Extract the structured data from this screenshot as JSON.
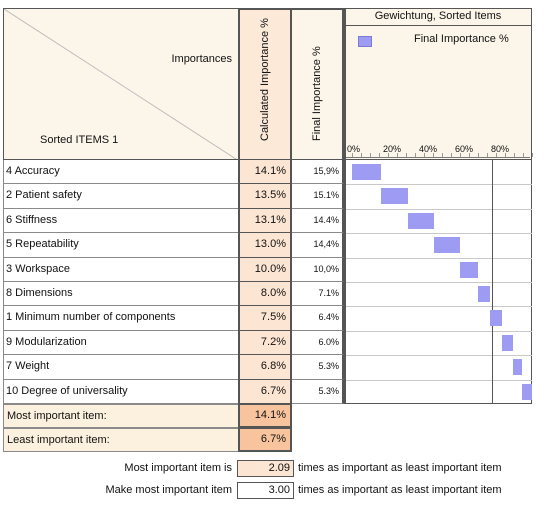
{
  "header": {
    "importances_label": "Importances",
    "sorted_items_label": "Sorted ITEMS 1",
    "calc_col_label": "Calculated Importance %",
    "final_col_label": "Final Importance %"
  },
  "chart_data": {
    "type": "bar",
    "orientation": "horizontal",
    "title": "Gewichtung, Sorted Items",
    "legend": "Final Importance %",
    "legend_position": "top-right",
    "x_ticks": [
      "0%",
      "20%",
      "40%",
      "60%",
      "80%"
    ],
    "xlim": [
      0,
      100
    ],
    "reference_line_x": 80,
    "categories": [
      "4 Accuracy",
      "2 Patient safety",
      "6 Stiffness",
      "5 Repeatability",
      "3 Workspace",
      "8 Dimensions",
      "1 Minimum number of components",
      "9 Modularization",
      "7 Weight",
      "10 Degree of universality"
    ],
    "values_start": [
      0,
      15.9,
      31.0,
      45.4,
      59.8,
      69.8,
      76.9,
      83.3,
      89.3,
      94.6
    ],
    "values": [
      15.9,
      15.1,
      14.4,
      14.4,
      10.0,
      7.1,
      6.4,
      6.0,
      5.3,
      5.3
    ],
    "colors": {
      "bar": "#9e9bf3"
    }
  },
  "rows": [
    {
      "label": "4 Accuracy",
      "calc": "14.1%",
      "final": "15,9%"
    },
    {
      "label": "2 Patient safety",
      "calc": "13.5%",
      "final": "15.1%"
    },
    {
      "label": "6 Stiffness",
      "calc": "13.1%",
      "final": "14.4%"
    },
    {
      "label": "5 Repeatability",
      "calc": "13.0%",
      "final": "14,4%"
    },
    {
      "label": "3 Workspace",
      "calc": "10.0%",
      "final": "10,0%"
    },
    {
      "label": "8 Dimensions",
      "calc": "8.0%",
      "final": "7.1%"
    },
    {
      "label": "1 Minimum number of components",
      "calc": "7.5%",
      "final": "6.4%"
    },
    {
      "label": "9 Modularization",
      "calc": "7.2%",
      "final": "6.0%"
    },
    {
      "label": "7 Weight",
      "calc": "6.8%",
      "final": "5.3%"
    },
    {
      "label": "10 Degree of universality",
      "calc": "6.7%",
      "final": "5.3%"
    }
  ],
  "summary": {
    "most_label": "Most important item:",
    "most_value": "14.1%",
    "least_label": "Least important item:",
    "least_value": "6.7%"
  },
  "ratio": {
    "line1_label": "Most important item is",
    "line1_value": "2.09",
    "line1_suffix": "times as important as least important item",
    "line2_label": "Make most important item",
    "line2_value": "3.00",
    "line2_suffix": "times as important as least important item"
  }
}
